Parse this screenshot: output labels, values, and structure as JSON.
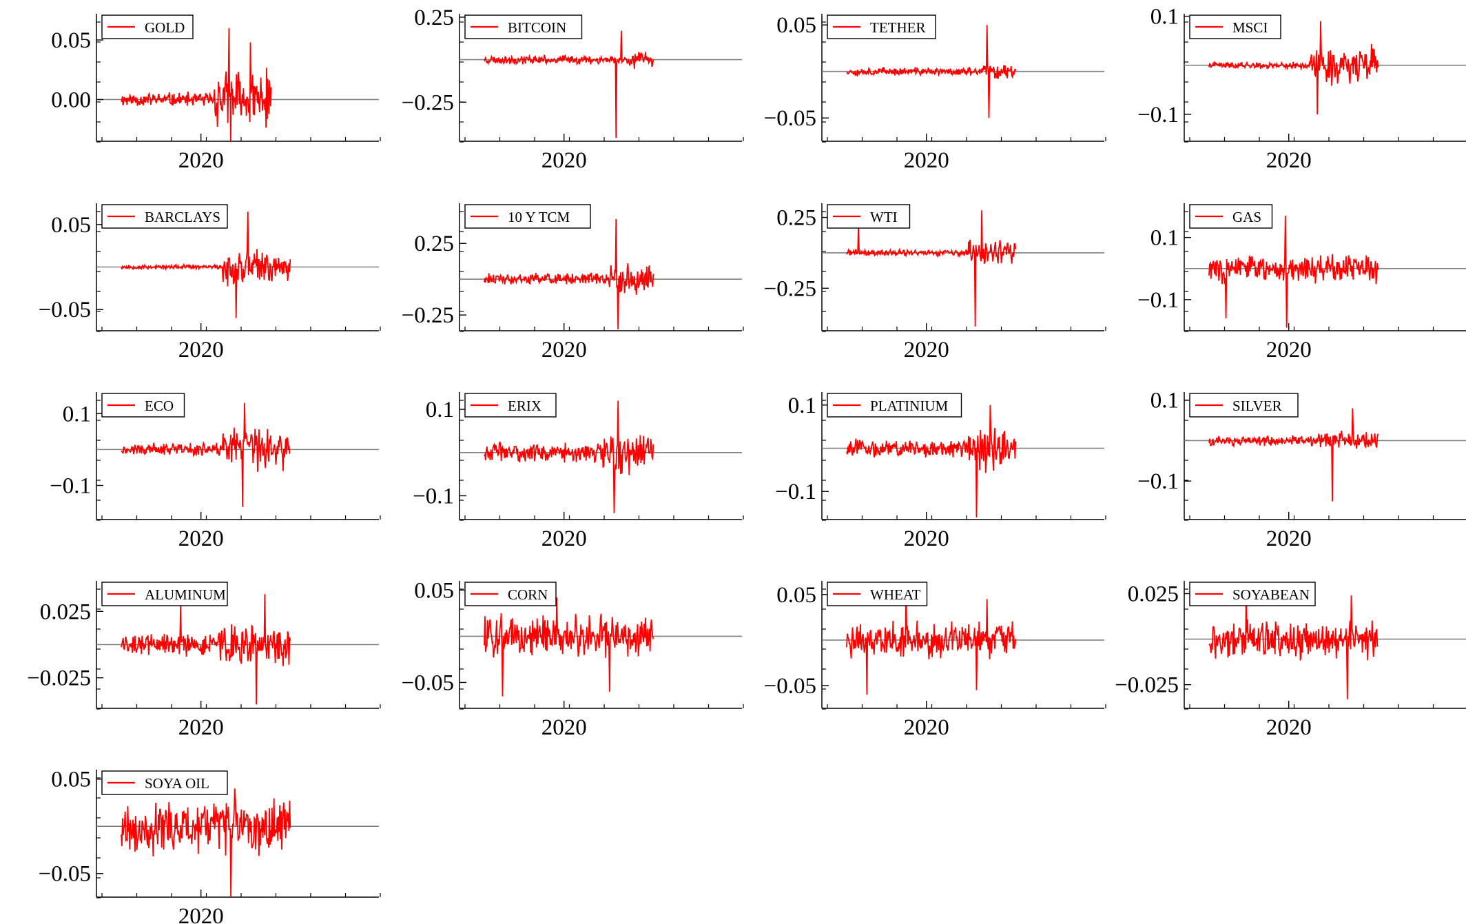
{
  "figure": {
    "background": "#ffffff",
    "series_color": "#ff0000",
    "zero_line_color": "#808080"
  },
  "chart_data": [
    {
      "type": "line",
      "legend": "GOLD",
      "xlabel": "",
      "ylabel": "",
      "x_ticks": [
        "2020"
      ],
      "y_ticks": [
        "0.05",
        "0.00"
      ],
      "y_tick_values": [
        0.05,
        0.0
      ],
      "ylim": [
        -0.035,
        0.072
      ],
      "seed": 11,
      "base": 0.007,
      "calm_end": 0.62,
      "volatile_amp": 0.028,
      "spikes": [
        [
          0.72,
          0.06
        ],
        [
          0.73,
          -0.035
        ],
        [
          0.86,
          0.048
        ]
      ],
      "x_end": 0.71,
      "series": [
        {
          "name": "GOLD",
          "values_desc": ""
        }
      ]
    },
    {
      "type": "line",
      "legend": "BITCOIN",
      "xlabel": "",
      "ylabel": "",
      "x_ticks": [
        "2020"
      ],
      "y_ticks": [
        "0.25",
        "-0.25"
      ],
      "y_tick_values": [
        0.25,
        -0.25
      ],
      "ylim": [
        -0.48,
        0.27
      ],
      "seed": 23,
      "base": 0.03,
      "calm_end": 0.85,
      "volatile_amp": 0.06,
      "spikes": [
        [
          0.78,
          -0.46
        ],
        [
          0.81,
          0.17
        ]
      ],
      "x_end": 0.8
    },
    {
      "type": "line",
      "legend": "TETHER",
      "xlabel": "",
      "ylabel": "",
      "x_ticks": [
        "2020"
      ],
      "y_ticks": [
        "0.05",
        "-0.05"
      ],
      "y_tick_values": [
        0.05,
        -0.05
      ],
      "ylim": [
        -0.075,
        0.062
      ],
      "seed": 37,
      "base": 0.005,
      "calm_end": 0.8,
      "volatile_amp": 0.01,
      "spikes": [
        [
          0.83,
          0.05
        ],
        [
          0.84,
          -0.05
        ]
      ],
      "x_end": 0.8
    },
    {
      "type": "line",
      "legend": "MSCI",
      "xlabel": "",
      "ylabel": "",
      "x_ticks": [
        "2020"
      ],
      "y_ticks": [
        "0.1",
        "-0.1"
      ],
      "y_tick_values": [
        0.1,
        -0.1
      ],
      "ylim": [
        -0.155,
        0.105
      ],
      "seed": 41,
      "base": 0.008,
      "calm_end": 0.6,
      "volatile_amp": 0.045,
      "spikes": [
        [
          0.64,
          -0.1
        ],
        [
          0.66,
          0.09
        ]
      ],
      "x_end": 0.8
    },
    {
      "type": "line",
      "legend": "BARCLAYS",
      "xlabel": "",
      "ylabel": "",
      "x_ticks": [
        "2020"
      ],
      "y_ticks": [
        "0.05",
        "-0.05"
      ],
      "y_tick_values": [
        0.05,
        -0.05
      ],
      "ylim": [
        -0.075,
        0.075
      ],
      "seed": 53,
      "base": 0.003,
      "calm_end": 0.6,
      "volatile_amp": 0.025,
      "spikes": [
        [
          0.68,
          -0.06
        ],
        [
          0.75,
          0.065
        ]
      ],
      "x_end": 0.8
    },
    {
      "type": "line",
      "legend": "10 Y TCM",
      "xlabel": "",
      "ylabel": "",
      "x_ticks": [
        "2020"
      ],
      "y_ticks": [
        "0.25",
        "-0.25"
      ],
      "y_tick_values": [
        0.25,
        -0.25
      ],
      "ylim": [
        -0.36,
        0.53
      ],
      "seed": 61,
      "base": 0.05,
      "calm_end": 0.74,
      "volatile_amp": 0.12,
      "spikes": [
        [
          0.78,
          0.42
        ],
        [
          0.79,
          -0.35
        ]
      ],
      "x_end": 0.8
    },
    {
      "type": "line",
      "legend": "WTI",
      "xlabel": "",
      "ylabel": "",
      "x_ticks": [
        "2020"
      ],
      "y_ticks": [
        "0.25",
        "-0.25"
      ],
      "y_tick_values": [
        0.25,
        -0.25
      ],
      "ylim": [
        -0.55,
        0.35
      ],
      "seed": 71,
      "base": 0.03,
      "calm_end": 0.72,
      "volatile_amp": 0.1,
      "spikes": [
        [
          0.07,
          0.2
        ],
        [
          0.76,
          -0.52
        ],
        [
          0.8,
          0.3
        ]
      ],
      "x_end": 0.8
    },
    {
      "type": "line",
      "legend": "GAS",
      "xlabel": "",
      "ylabel": "",
      "x_ticks": [
        "2020"
      ],
      "y_ticks": [
        "0.1",
        "-0.1"
      ],
      "y_tick_values": [
        0.1,
        -0.1
      ],
      "ylim": [
        -0.2,
        0.21
      ],
      "seed": 83,
      "base": 0.055,
      "calm_end": 0.0,
      "volatile_amp": 0.055,
      "spikes": [
        [
          0.45,
          0.17
        ],
        [
          0.46,
          -0.19
        ],
        [
          0.1,
          -0.16
        ]
      ],
      "x_end": 0.8
    },
    {
      "type": "line",
      "legend": "ECO",
      "xlabel": "",
      "ylabel": "",
      "x_ticks": [
        "2020"
      ],
      "y_ticks": [
        "0.1",
        "-0.1"
      ],
      "y_tick_values": [
        0.1,
        -0.1
      ],
      "ylim": [
        -0.195,
        0.16
      ],
      "seed": 97,
      "base": 0.02,
      "calm_end": 0.6,
      "volatile_amp": 0.07,
      "spikes": [
        [
          0.72,
          -0.16
        ],
        [
          0.73,
          0.13
        ]
      ],
      "x_end": 0.8
    },
    {
      "type": "line",
      "legend": "ERIX",
      "xlabel": "",
      "ylabel": "",
      "x_ticks": [
        "2020"
      ],
      "y_ticks": [
        "0.1",
        "-0.1"
      ],
      "y_tick_values": [
        0.1,
        -0.1
      ],
      "ylim": [
        -0.155,
        0.14
      ],
      "seed": 103,
      "base": 0.025,
      "calm_end": 0.7,
      "volatile_amp": 0.06,
      "spikes": [
        [
          0.77,
          -0.14
        ],
        [
          0.79,
          0.12
        ]
      ],
      "x_end": 0.8
    },
    {
      "type": "line",
      "legend": "PLATINIUM",
      "xlabel": "",
      "ylabel": "",
      "x_ticks": [
        "2020"
      ],
      "y_ticks": [
        "0.1",
        "-0.1"
      ],
      "y_tick_values": [
        0.1,
        -0.1
      ],
      "ylim": [
        -0.165,
        0.13
      ],
      "seed": 113,
      "base": 0.025,
      "calm_end": 0.72,
      "volatile_amp": 0.06,
      "spikes": [
        [
          0.77,
          -0.16
        ],
        [
          0.85,
          0.1
        ]
      ],
      "x_end": 0.8
    },
    {
      "type": "line",
      "legend": "SILVER",
      "xlabel": "",
      "ylabel": "",
      "x_ticks": [
        "2020"
      ],
      "y_ticks": [
        "0.1",
        "-0.1"
      ],
      "y_tick_values": [
        0.1,
        -0.1
      ],
      "ylim": [
        -0.195,
        0.12
      ],
      "seed": 127,
      "base": 0.015,
      "calm_end": 0.64,
      "volatile_amp": 0.03,
      "spikes": [
        [
          0.73,
          -0.15
        ],
        [
          0.85,
          0.08
        ]
      ],
      "x_end": 0.8
    },
    {
      "type": "line",
      "legend": "ALUMINUM",
      "xlabel": "",
      "ylabel": "",
      "x_ticks": [
        "2020"
      ],
      "y_ticks": [
        "0.025",
        "-0.025"
      ],
      "y_tick_values": [
        0.025,
        -0.025
      ],
      "ylim": [
        -0.048,
        0.048
      ],
      "seed": 131,
      "base": 0.01,
      "calm_end": 0.55,
      "volatile_amp": 0.018,
      "spikes": [
        [
          0.35,
          0.03
        ],
        [
          0.8,
          -0.045
        ],
        [
          0.85,
          0.038
        ]
      ],
      "x_end": 0.8
    },
    {
      "type": "line",
      "legend": "CORN",
      "xlabel": "",
      "ylabel": "",
      "x_ticks": [
        "2020"
      ],
      "y_ticks": [
        "0.05",
        "-0.05"
      ],
      "y_tick_values": [
        0.05,
        -0.05
      ],
      "ylim": [
        -0.078,
        0.06
      ],
      "seed": 139,
      "base": 0.025,
      "calm_end": 1.0,
      "volatile_amp": 0.025,
      "spikes": [
        [
          0.11,
          -0.065
        ],
        [
          0.1,
          0.025
        ],
        [
          0.43,
          0.042
        ],
        [
          0.74,
          -0.06
        ]
      ],
      "x_end": 0.8
    },
    {
      "type": "line",
      "legend": "WHEAT",
      "xlabel": "",
      "ylabel": "",
      "x_ticks": [
        "2020"
      ],
      "y_ticks": [
        "0.05",
        "-0.05"
      ],
      "y_tick_values": [
        0.05,
        -0.05
      ],
      "ylim": [
        -0.075,
        0.065
      ],
      "seed": 149,
      "base": 0.022,
      "calm_end": 1.0,
      "volatile_amp": 0.022,
      "spikes": [
        [
          0.12,
          -0.06
        ],
        [
          0.35,
          0.055
        ],
        [
          0.77,
          -0.055
        ],
        [
          0.83,
          0.045
        ]
      ],
      "x_end": 0.8
    },
    {
      "type": "line",
      "legend": "SOYABEAN",
      "xlabel": "",
      "ylabel": "",
      "x_ticks": [
        "2020"
      ],
      "y_ticks": [
        "0.025",
        "-0.025"
      ],
      "y_tick_values": [
        0.025,
        -0.025
      ],
      "ylim": [
        -0.038,
        0.032
      ],
      "seed": 157,
      "base": 0.012,
      "calm_end": 1.0,
      "volatile_amp": 0.012,
      "spikes": [
        [
          0.22,
          0.03
        ],
        [
          0.82,
          -0.033
        ],
        [
          0.84,
          0.024
        ]
      ],
      "x_end": 0.8
    },
    {
      "type": "line",
      "legend": "SOYA OIL",
      "xlabel": "",
      "ylabel": "",
      "x_ticks": [
        "2020"
      ],
      "y_ticks": [
        "0.05",
        "-0.05"
      ],
      "y_tick_values": [
        0.05,
        -0.05
      ],
      "ylim": [
        -0.075,
        0.06
      ],
      "seed": 167,
      "base": 0.035,
      "calm_end": 1.0,
      "volatile_amp": 0.035,
      "spikes": [
        [
          0.65,
          -0.075
        ],
        [
          0.67,
          0.04
        ]
      ],
      "x_end": 0.8
    }
  ]
}
